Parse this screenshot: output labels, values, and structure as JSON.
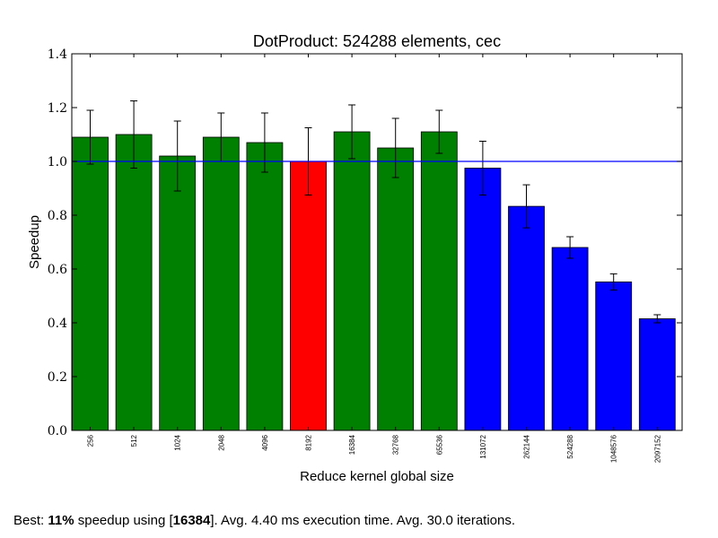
{
  "chart_data": {
    "type": "bar",
    "title": "DotProduct: 524288 elements, cec",
    "xlabel": "Reduce kernel global size",
    "ylabel": "Speedup",
    "ylim": [
      0.0,
      1.4
    ],
    "yticks": [
      "0.0",
      "0.2",
      "0.4",
      "0.6",
      "0.8",
      "1.0",
      "1.2",
      "1.4"
    ],
    "categories": [
      "256",
      "512",
      "1024",
      "2048",
      "4096",
      "8192",
      "16384",
      "32768",
      "65536",
      "131072",
      "262144",
      "524288",
      "1048576",
      "2097152"
    ],
    "values": [
      1.09,
      1.1,
      1.02,
      1.09,
      1.07,
      1.0,
      1.11,
      1.05,
      1.11,
      0.975,
      0.833,
      0.68,
      0.552,
      0.415
    ],
    "errors": [
      0.1,
      0.125,
      0.13,
      0.09,
      0.11,
      0.125,
      0.1,
      0.11,
      0.08,
      0.1,
      0.08,
      0.04,
      0.03,
      0.015
    ],
    "bar_colors": [
      "#008000",
      "#008000",
      "#008000",
      "#008000",
      "#008000",
      "#ff0000",
      "#008000",
      "#008000",
      "#008000",
      "#0000ff",
      "#0000ff",
      "#0000ff",
      "#0000ff",
      "#0000ff"
    ],
    "reference_line": 1.0,
    "reference_color": "#0000ff",
    "grid": false
  },
  "footer": {
    "prefix": "Best: ",
    "speedup": "11%",
    "mid": " speedup using [",
    "best_size": "16384",
    "suffix": "]. Avg. 4.40 ms execution time. Avg. 30.0 iterations."
  }
}
